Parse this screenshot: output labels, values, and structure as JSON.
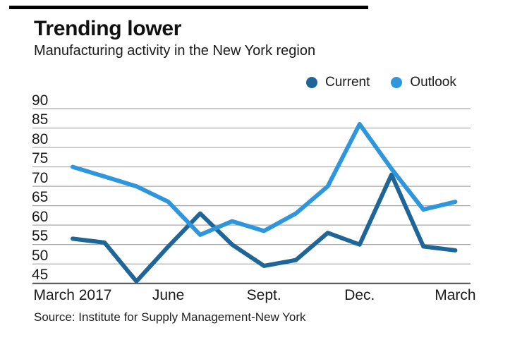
{
  "header": {
    "title": "Trending lower",
    "subtitle": "Manufacturing activity in the New York region"
  },
  "legend": {
    "items": [
      {
        "label": "Current",
        "color": "#1e6598"
      },
      {
        "label": "Outlook",
        "color": "#2e96dc"
      }
    ]
  },
  "chart_data": {
    "type": "line",
    "title": "Trending lower",
    "subtitle": "Manufacturing activity in the New York region",
    "x": [
      0,
      1,
      2,
      3,
      4,
      5,
      6,
      7,
      8,
      9,
      10,
      11,
      12
    ],
    "x_tick_labels": [
      {
        "index": 0,
        "label": "March 2017"
      },
      {
        "index": 3,
        "label": "June"
      },
      {
        "index": 6,
        "label": "Sept."
      },
      {
        "index": 9,
        "label": "Dec."
      },
      {
        "index": 12,
        "label": "March"
      }
    ],
    "ylim": [
      45,
      90
    ],
    "yticks": [
      45,
      50,
      55,
      60,
      65,
      70,
      75,
      80,
      85,
      90
    ],
    "grid": "horizontal",
    "legend_position": "top-right",
    "series": [
      {
        "name": "Current",
        "color": "#1e6598",
        "values": [
          56.5,
          55.5,
          45.5,
          54.5,
          63,
          55,
          49.5,
          51,
          58,
          55,
          73,
          54.5,
          53.5
        ]
      },
      {
        "name": "Outlook",
        "color": "#2e96dc",
        "values": [
          75,
          72.5,
          70,
          66,
          57.5,
          61,
          58.5,
          63,
          70,
          86,
          74.5,
          64,
          66
        ]
      }
    ]
  },
  "source": {
    "text": "Source: Institute for Supply Management-New York"
  },
  "colors": {
    "gridline": "#a8a8a8",
    "baseline": "#4d4d4d",
    "top_rule": "#000000",
    "current": "#1e6598",
    "outlook": "#2e96dc"
  }
}
